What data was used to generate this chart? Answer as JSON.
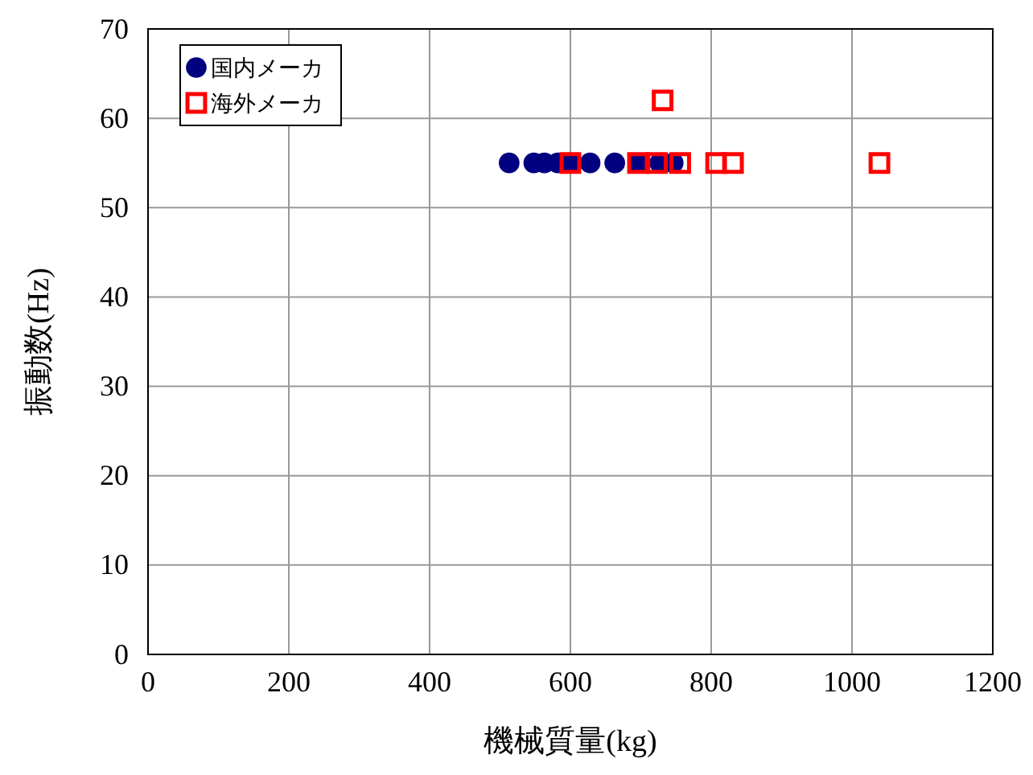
{
  "chart_data": {
    "type": "scatter",
    "xlabel": "機械質量(kg)",
    "ylabel": "振動数(Hz)",
    "xlim": [
      0,
      1200
    ],
    "xticks": [
      0,
      200,
      400,
      600,
      800,
      1000,
      1200
    ],
    "ylim": [
      0,
      70
    ],
    "yticks": [
      0,
      10,
      20,
      30,
      40,
      50,
      60,
      70
    ],
    "grid": true,
    "legend": "top left",
    "series": [
      {
        "name": "国内メーカ",
        "color": "#000080",
        "marker": "circle",
        "x": [
          513,
          548,
          563,
          582,
          600,
          628,
          663,
          696,
          727,
          746
        ],
        "values": [
          55,
          55,
          55,
          55,
          55,
          55,
          55,
          55,
          55,
          55
        ]
      },
      {
        "name": "海外メーカ",
        "color": "#ff0000",
        "marker": "square",
        "x": [
          600,
          696,
          723,
          731,
          756,
          807,
          831,
          1039
        ],
        "values": [
          55,
          55,
          55,
          62,
          55,
          55,
          55,
          55
        ]
      }
    ]
  }
}
